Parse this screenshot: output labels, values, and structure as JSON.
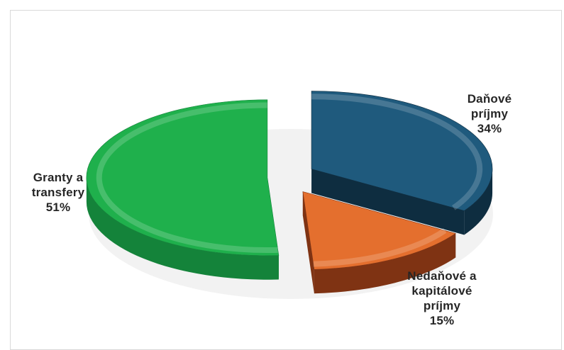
{
  "chart_data": {
    "type": "pie",
    "style": "3d-exploded",
    "slices": [
      {
        "label_lines": [
          "Daňové",
          "príjmy",
          "34%"
        ],
        "label": "Daňové príjmy",
        "value": 34,
        "color": "#1f5a7d",
        "side_color": "#0e2d40"
      },
      {
        "label_lines": [
          "Nedaňové a",
          "kapitálové",
          "príjmy",
          "15%"
        ],
        "label": "Nedaňové a kapitálové príjmy",
        "value": 15,
        "color": "#e46f2e",
        "side_color": "#7f3313"
      },
      {
        "label_lines": [
          "Granty a",
          "transfery",
          "51%"
        ],
        "label": "Granty a transfery",
        "value": 51,
        "color": "#1fb04c",
        "side_color": "#14833a"
      }
    ]
  }
}
